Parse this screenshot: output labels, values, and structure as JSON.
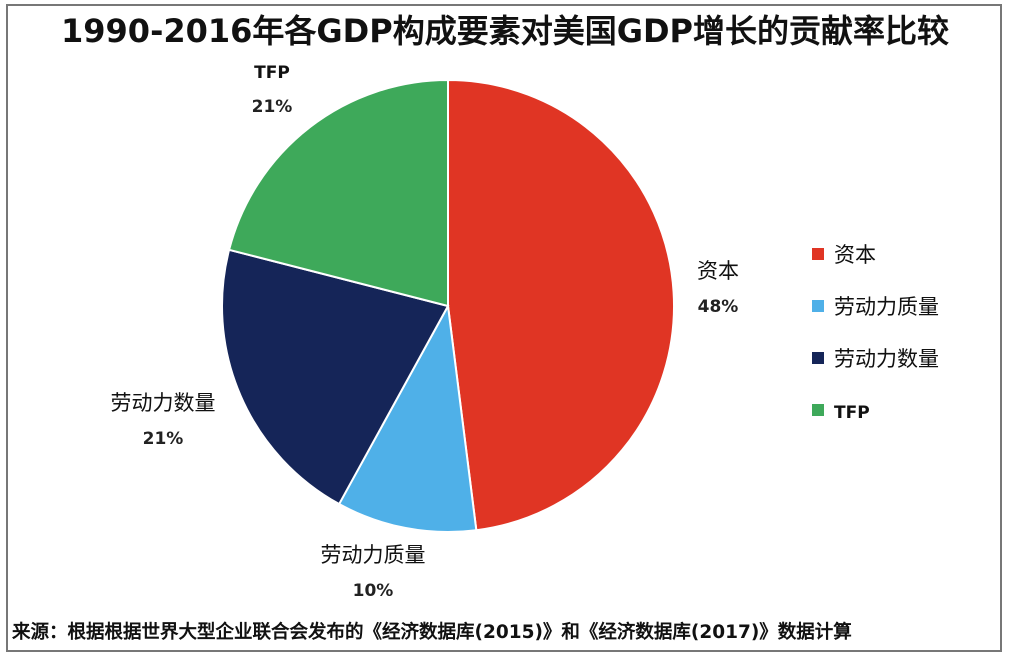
{
  "chart_data": {
    "type": "pie",
    "title": "1990-2016年各GDP构成要素对美国GDP增长的贡献率比较",
    "slices": [
      {
        "name": "资本",
        "value": 48,
        "label": "48%",
        "color": "#e03524"
      },
      {
        "name": "劳动力质量",
        "value": 10,
        "label": "10%",
        "color": "#4fb0e8"
      },
      {
        "name": "劳动力数量",
        "value": 21,
        "label": "21%",
        "color": "#152558"
      },
      {
        "name": "TFP",
        "value": 21,
        "label": "21%",
        "color": "#3ea95a"
      }
    ],
    "legend": [
      "资本",
      "劳动力质量",
      "劳动力数量",
      "TFP"
    ],
    "legend_position": "right"
  },
  "source": "来源：根据根据世界大型企业联合会发布的《经济数据库(2015)》和《经济数据库(2017)》数据计算"
}
